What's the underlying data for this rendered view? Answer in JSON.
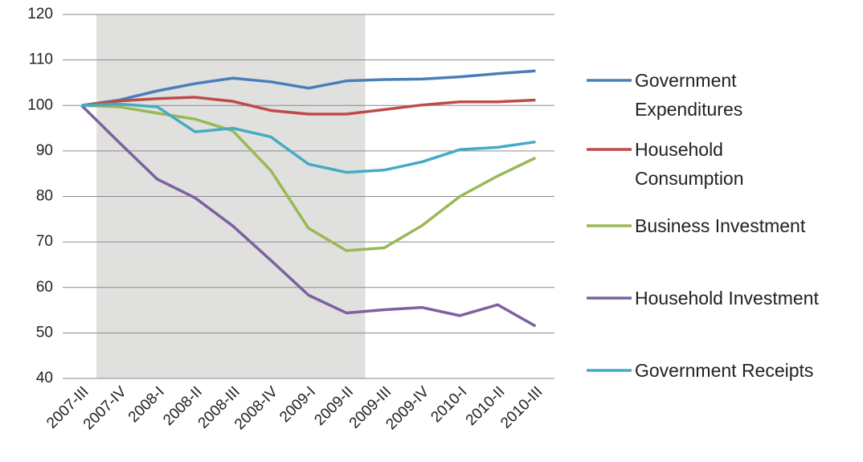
{
  "chart_data": {
    "type": "line",
    "categories": [
      "2007-III",
      "2007-IV",
      "2008-I",
      "2008-II",
      "2008-III",
      "2008-IV",
      "2009-I",
      "2009-II",
      "2009-III",
      "2009-IV",
      "2010-I",
      "2010-II",
      "2010-III"
    ],
    "series": [
      {
        "name": "Government Expenditures",
        "color": "#4a7ebb",
        "values": [
          100,
          101.2,
          103.2,
          104.8,
          106,
          105.2,
          103.8,
          105.4,
          105.7,
          105.8,
          106.3,
          107,
          107.6
        ]
      },
      {
        "name": "Household Consumption",
        "color": "#be4b48",
        "values": [
          100,
          101,
          101.5,
          101.8,
          100.9,
          98.9,
          98.1,
          98.1,
          99.1,
          100.1,
          100.8,
          100.8,
          101.2
        ]
      },
      {
        "name": "Business Investment",
        "color": "#98b954",
        "values": [
          100,
          99.7,
          98.3,
          97,
          94.4,
          85.7,
          73,
          68.1,
          68.7,
          73.6,
          80,
          84.5,
          88.5
        ]
      },
      {
        "name": "Household Investment",
        "color": "#7d60a0",
        "values": [
          100,
          91.8,
          83.8,
          79.7,
          73.5,
          66,
          58.3,
          54.4,
          55.1,
          55.6,
          53.8,
          56.2,
          51.5
        ]
      },
      {
        "name": "Government Receipts",
        "color": "#46aac5",
        "values": [
          100,
          100.3,
          99.7,
          94.2,
          95,
          93.1,
          87.1,
          85.3,
          85.8,
          87.6,
          90.3,
          90.8,
          92
        ]
      }
    ],
    "ylim": [
      40,
      120
    ],
    "yticks": [
      40,
      50,
      60,
      70,
      80,
      90,
      100,
      110,
      120
    ],
    "grid": true,
    "shade": {
      "from": "2007-IV",
      "to": "2009-II",
      "color": "#e0e0df"
    },
    "legend": "right"
  }
}
